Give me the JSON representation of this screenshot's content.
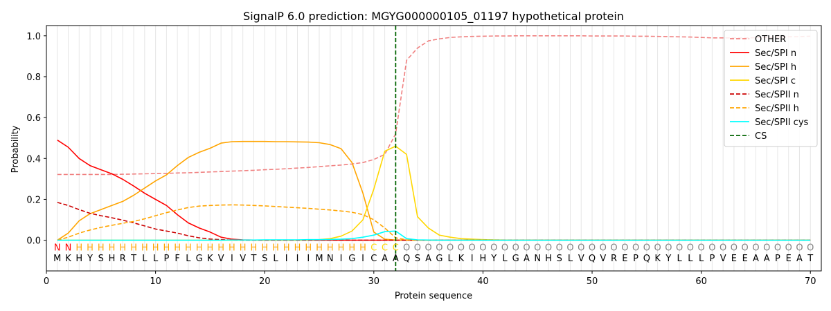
{
  "chart_data": {
    "type": "line",
    "title": "SignalP 6.0 prediction: MGYG000000105_01197 hypothetical protein",
    "xlabel": "Protein sequence",
    "ylabel": "Probability",
    "xlim": [
      0,
      71
    ],
    "ylim": [
      -0.15,
      1.05
    ],
    "xticks": [
      0,
      10,
      20,
      30,
      40,
      50,
      60,
      70
    ],
    "yticks": [
      0.0,
      0.2,
      0.4,
      0.6,
      0.8,
      1.0
    ],
    "ytick_labels": [
      "0.0",
      "0.2",
      "0.4",
      "0.6",
      "0.8",
      "1.0"
    ],
    "sequence": [
      "M",
      "K",
      "H",
      "Y",
      "S",
      "H",
      "R",
      "T",
      "L",
      "L",
      "P",
      "F",
      "L",
      "G",
      "K",
      "V",
      "I",
      "V",
      "T",
      "S",
      "L",
      "I",
      "I",
      "I",
      "M",
      "N",
      "I",
      "G",
      "I",
      "C",
      "A",
      "A",
      "Q",
      "S",
      "A",
      "G",
      "L",
      "K",
      "I",
      "H",
      "Y",
      "L",
      "G",
      "A",
      "N",
      "H",
      "S",
      "L",
      "V",
      "Q",
      "V",
      "R",
      "E",
      "P",
      "Q",
      "K",
      "Y",
      "L",
      "L",
      "L",
      "P",
      "V",
      "E",
      "E",
      "A",
      "A",
      "P",
      "E",
      "A",
      "T"
    ],
    "labels": [
      "N",
      "N",
      "H",
      "H",
      "H",
      "H",
      "H",
      "H",
      "H",
      "H",
      "H",
      "H",
      "H",
      "H",
      "H",
      "H",
      "H",
      "H",
      "H",
      "H",
      "H",
      "H",
      "H",
      "H",
      "H",
      "H",
      "H",
      "H",
      "H",
      "C",
      "C",
      "C",
      "O",
      "O",
      "O",
      "O",
      "O",
      "O",
      "O",
      "O",
      "O",
      "O",
      "O",
      "O",
      "O",
      "O",
      "O",
      "O",
      "O",
      "O",
      "O",
      "O",
      "O",
      "O",
      "O",
      "O",
      "O",
      "O",
      "O",
      "O",
      "O",
      "O",
      "O",
      "O",
      "O",
      "O",
      "O",
      "O",
      "O",
      "O"
    ],
    "label_colors": {
      "N": "#ff0000",
      "H": "#ffa500",
      "C": "#ffd700",
      "O": "#808080"
    },
    "cleavage_site": 32,
    "legend_position": "top-right",
    "series": [
      {
        "name": "OTHER",
        "color": "#f08080",
        "dash": "dashed",
        "values": [
          0.322,
          0.322,
          0.322,
          0.322,
          0.322,
          0.322,
          0.323,
          0.324,
          0.325,
          0.326,
          0.327,
          0.329,
          0.33,
          0.332,
          0.334,
          0.336,
          0.338,
          0.34,
          0.342,
          0.345,
          0.347,
          0.35,
          0.353,
          0.356,
          0.36,
          0.364,
          0.368,
          0.373,
          0.38,
          0.395,
          0.42,
          0.52,
          0.88,
          0.94,
          0.975,
          0.985,
          0.992,
          0.995,
          0.997,
          0.998,
          0.999,
          0.999,
          1.0,
          1.0,
          1.0,
          1.0,
          1.0,
          1.0,
          1.0,
          0.999,
          0.999,
          0.999,
          0.999,
          0.998,
          0.998,
          0.997,
          0.996,
          0.995,
          0.994,
          0.992,
          0.99,
          0.99,
          0.99,
          0.99,
          0.991,
          0.992,
          0.993,
          0.995,
          0.996,
          0.998
        ]
      },
      {
        "name": "Sec/SPI n",
        "color": "#ff0000",
        "dash": "solid",
        "values": [
          0.49,
          0.455,
          0.4,
          0.365,
          0.345,
          0.325,
          0.298,
          0.265,
          0.23,
          0.2,
          0.17,
          0.125,
          0.085,
          0.06,
          0.04,
          0.015,
          0.005,
          0.002,
          0.001,
          0.0,
          0.0,
          0.0,
          0.0,
          0.0,
          0.0,
          0.0,
          0.0,
          0.0,
          0.0,
          0.0,
          0.0,
          0.0,
          0.0,
          0.0,
          0.0,
          0.0,
          0.0,
          0.0,
          0.0,
          0.0,
          0.0,
          0.0,
          0.0,
          0.0,
          0.0,
          0.0,
          0.0,
          0.0,
          0.0,
          0.0,
          0.0,
          0.0,
          0.0,
          0.0,
          0.0,
          0.0,
          0.0,
          0.0,
          0.0,
          0.0,
          0.0,
          0.0,
          0.0,
          0.0,
          0.0,
          0.0,
          0.0,
          0.0,
          0.0,
          0.0
        ]
      },
      {
        "name": "Sec/SPI h",
        "color": "#ffa500",
        "dash": "solid",
        "values": [
          0.0,
          0.035,
          0.095,
          0.13,
          0.15,
          0.17,
          0.19,
          0.22,
          0.255,
          0.29,
          0.32,
          0.365,
          0.405,
          0.43,
          0.45,
          0.475,
          0.482,
          0.483,
          0.483,
          0.483,
          0.482,
          0.482,
          0.481,
          0.48,
          0.477,
          0.468,
          0.448,
          0.38,
          0.23,
          0.04,
          0.005,
          0.001,
          0.0,
          0.0,
          0.0,
          0.0,
          0.0,
          0.0,
          0.0,
          0.0,
          0.0,
          0.0,
          0.0,
          0.0,
          0.0,
          0.0,
          0.0,
          0.0,
          0.0,
          0.0,
          0.0,
          0.0,
          0.0,
          0.0,
          0.0,
          0.0,
          0.0,
          0.0,
          0.0,
          0.0,
          0.0,
          0.0,
          0.0,
          0.0,
          0.0,
          0.0,
          0.0,
          0.0,
          0.0,
          0.0
        ]
      },
      {
        "name": "Sec/SPI c",
        "color": "#ffd700",
        "dash": "solid",
        "values": [
          0.0,
          0.0,
          0.0,
          0.0,
          0.0,
          0.0,
          0.0,
          0.0,
          0.0,
          0.0,
          0.0,
          0.0,
          0.0,
          0.0,
          0.0,
          0.0,
          0.0,
          0.0,
          0.0,
          0.0,
          0.0,
          0.0,
          0.0,
          0.001,
          0.003,
          0.008,
          0.02,
          0.045,
          0.1,
          0.25,
          0.435,
          0.46,
          0.42,
          0.115,
          0.06,
          0.025,
          0.015,
          0.008,
          0.005,
          0.003,
          0.002,
          0.001,
          0.0,
          0.0,
          0.0,
          0.0,
          0.0,
          0.0,
          0.0,
          0.0,
          0.0,
          0.0,
          0.0,
          0.0,
          0.0,
          0.0,
          0.0,
          0.0,
          0.0,
          0.0,
          0.0,
          0.0,
          0.0,
          0.0,
          0.0,
          0.0,
          0.0,
          0.0,
          0.0,
          0.0
        ]
      },
      {
        "name": "Sec/SPII n",
        "color": "#cc0000",
        "dash": "dashed",
        "values": [
          0.185,
          0.17,
          0.15,
          0.132,
          0.12,
          0.11,
          0.098,
          0.085,
          0.07,
          0.055,
          0.045,
          0.035,
          0.022,
          0.012,
          0.006,
          0.003,
          0.001,
          0.0,
          0.0,
          0.0,
          0.0,
          0.0,
          0.0,
          0.0,
          0.0,
          0.0,
          0.0,
          0.0,
          0.0,
          0.0,
          0.0,
          0.0,
          0.0,
          0.0,
          0.0,
          0.0,
          0.0,
          0.0,
          0.0,
          0.0,
          0.0,
          0.0,
          0.0,
          0.0,
          0.0,
          0.0,
          0.0,
          0.0,
          0.0,
          0.0,
          0.0,
          0.0,
          0.0,
          0.0,
          0.0,
          0.0,
          0.0,
          0.0,
          0.0,
          0.0,
          0.0,
          0.0,
          0.0,
          0.0,
          0.0,
          0.0,
          0.0,
          0.0,
          0.0,
          0.0
        ]
      },
      {
        "name": "Sec/SPII h",
        "color": "#ffa500",
        "dash": "dashed",
        "values": [
          0.0,
          0.015,
          0.035,
          0.05,
          0.063,
          0.073,
          0.083,
          0.092,
          0.105,
          0.12,
          0.135,
          0.148,
          0.16,
          0.167,
          0.17,
          0.172,
          0.173,
          0.172,
          0.17,
          0.168,
          0.165,
          0.162,
          0.159,
          0.156,
          0.152,
          0.148,
          0.143,
          0.137,
          0.125,
          0.1,
          0.06,
          0.012,
          0.002,
          0.0,
          0.0,
          0.0,
          0.0,
          0.0,
          0.0,
          0.0,
          0.0,
          0.0,
          0.0,
          0.0,
          0.0,
          0.0,
          0.0,
          0.0,
          0.0,
          0.0,
          0.0,
          0.0,
          0.0,
          0.0,
          0.0,
          0.0,
          0.0,
          0.0,
          0.0,
          0.0,
          0.0,
          0.0,
          0.0,
          0.0,
          0.0,
          0.0,
          0.0,
          0.0,
          0.0,
          0.0
        ]
      },
      {
        "name": "Sec/SPII cys",
        "color": "#00ffff",
        "dash": "solid",
        "values": [
          0.0,
          0.0,
          0.0,
          0.0,
          0.0,
          0.0,
          0.0,
          0.0,
          0.0,
          0.0,
          0.0,
          0.0,
          0.0,
          0.0,
          0.0,
          0.0,
          0.001,
          0.001,
          0.001,
          0.002,
          0.002,
          0.002,
          0.002,
          0.003,
          0.003,
          0.004,
          0.005,
          0.008,
          0.015,
          0.025,
          0.042,
          0.045,
          0.008,
          0.002,
          0.001,
          0.0,
          0.0,
          0.0,
          0.0,
          0.0,
          0.0,
          0.0,
          0.0,
          0.0,
          0.0,
          0.0,
          0.0,
          0.0,
          0.0,
          0.0,
          0.0,
          0.0,
          0.0,
          0.0,
          0.0,
          0.0,
          0.0,
          0.0,
          0.0,
          0.0,
          0.0,
          0.0,
          0.0,
          0.0,
          0.0,
          0.0,
          0.0,
          0.0,
          0.0,
          0.0
        ]
      },
      {
        "name": "CS",
        "color": "#006400",
        "dash": "dashed",
        "type": "vline",
        "x": 32
      }
    ]
  }
}
